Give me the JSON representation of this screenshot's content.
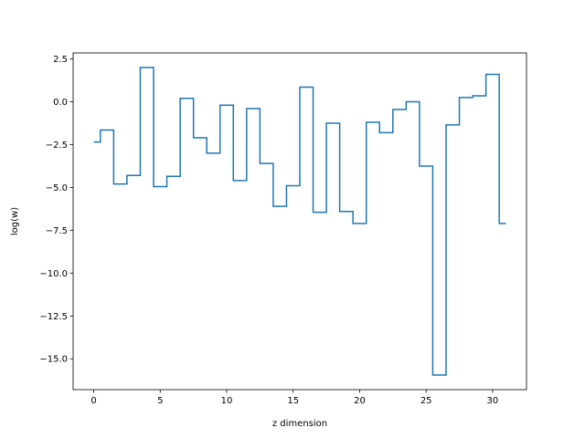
{
  "chart_data": {
    "type": "line",
    "drawstyle": "steps-mid",
    "title": "",
    "xlabel": "z dimension",
    "ylabel": "log(w)",
    "xlim": [
      -1.55,
      32.55
    ],
    "ylim": [
      -16.8,
      2.85
    ],
    "x_ticks": [
      0,
      5,
      10,
      15,
      20,
      25,
      30
    ],
    "x_tick_labels": [
      "0",
      "5",
      "10",
      "15",
      "20",
      "25",
      "30"
    ],
    "y_ticks": [
      2.5,
      0.0,
      -2.5,
      -5.0,
      -7.5,
      -10.0,
      -12.5,
      -15.0
    ],
    "y_tick_labels": [
      "2.5",
      "0.0",
      "−2.5",
      "−5.0",
      "−7.5",
      "−10.0",
      "−12.5",
      "−15.0"
    ],
    "grid": false,
    "legend": "none",
    "series": [
      {
        "color": "#1f77b4",
        "x": [
          0,
          1,
          2,
          3,
          4,
          5,
          6,
          7,
          8,
          9,
          10,
          11,
          12,
          13,
          14,
          15,
          16,
          17,
          18,
          19,
          20,
          21,
          22,
          23,
          24,
          25,
          26,
          27,
          28,
          29,
          30,
          31
        ],
        "y": [
          -2.35,
          -1.65,
          -4.8,
          -4.3,
          2.0,
          -4.95,
          -4.35,
          0.2,
          -2.1,
          -3.0,
          -0.2,
          -4.6,
          -0.4,
          -3.6,
          -6.1,
          -4.9,
          0.85,
          -6.45,
          -1.25,
          -6.4,
          -7.1,
          -1.2,
          -1.8,
          -0.45,
          0.0,
          -3.75,
          -15.95,
          -1.35,
          0.25,
          0.35,
          1.6,
          -7.1
        ]
      }
    ]
  }
}
